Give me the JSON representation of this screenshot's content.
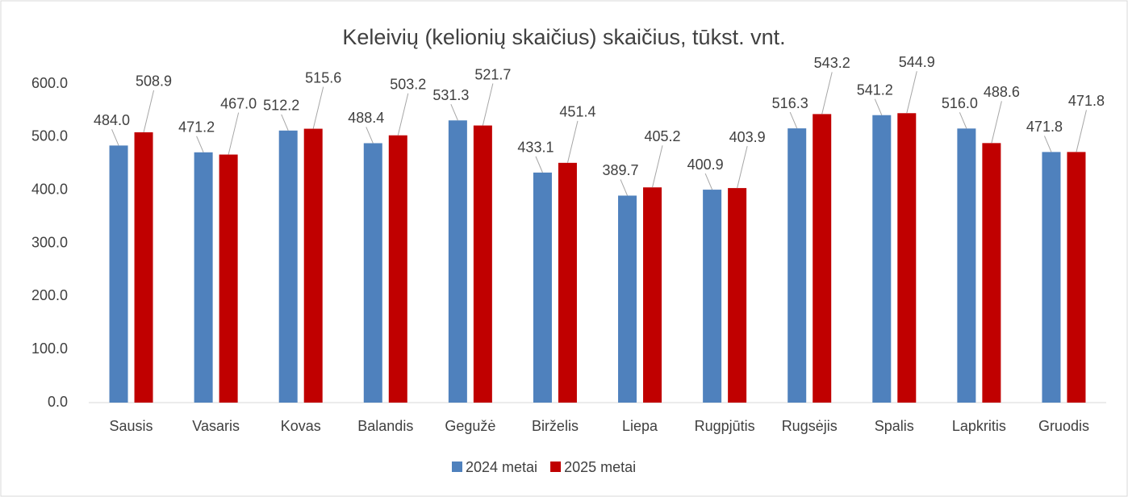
{
  "chart_data": {
    "type": "bar",
    "title": "Keleivių (kelionių skaičius) skaičius, tūkst. vnt.",
    "categories": [
      "Sausis",
      "Vasaris",
      "Kovas",
      "Balandis",
      "Gegužė",
      "Birželis",
      "Liepa",
      "Rugpjūtis",
      "Rugsėjis",
      "Spalis",
      "Lapkritis",
      "Gruodis"
    ],
    "series": [
      {
        "name": "2024 metai",
        "color": "#4f81bd",
        "values": [
          484.0,
          471.2,
          512.2,
          488.4,
          531.3,
          433.1,
          389.7,
          400.9,
          516.3,
          541.2,
          516.0,
          471.8
        ],
        "value_labels": [
          "484.0",
          "471.2",
          "512.2",
          "488.4",
          "531.3",
          "433.1",
          "389.7",
          "400.9",
          "516.3",
          "541.2",
          "516.0",
          "471.8"
        ]
      },
      {
        "name": "2025 metai",
        "color": "#c00000",
        "values": [
          508.9,
          467.0,
          515.6,
          503.2,
          521.7,
          451.4,
          405.2,
          403.9,
          543.2,
          544.9,
          488.6,
          471.8
        ],
        "value_labels": [
          "508.9",
          "467.0",
          "515.6",
          "503.2",
          "521.7",
          "451.4",
          "405.2",
          "403.9",
          "543.2",
          "544.9",
          "488.6",
          "471.8"
        ]
      }
    ],
    "ylim": [
      0,
      600
    ],
    "yticks": [
      {
        "value": 0,
        "label": "0.0"
      },
      {
        "value": 100,
        "label": "100.0"
      },
      {
        "value": 200,
        "label": "200.0"
      },
      {
        "value": 300,
        "label": "300.0"
      },
      {
        "value": 400,
        "label": "400.0"
      },
      {
        "value": 500,
        "label": "500.0"
      },
      {
        "value": 600,
        "label": "600.0"
      }
    ],
    "legend": "bottom"
  }
}
